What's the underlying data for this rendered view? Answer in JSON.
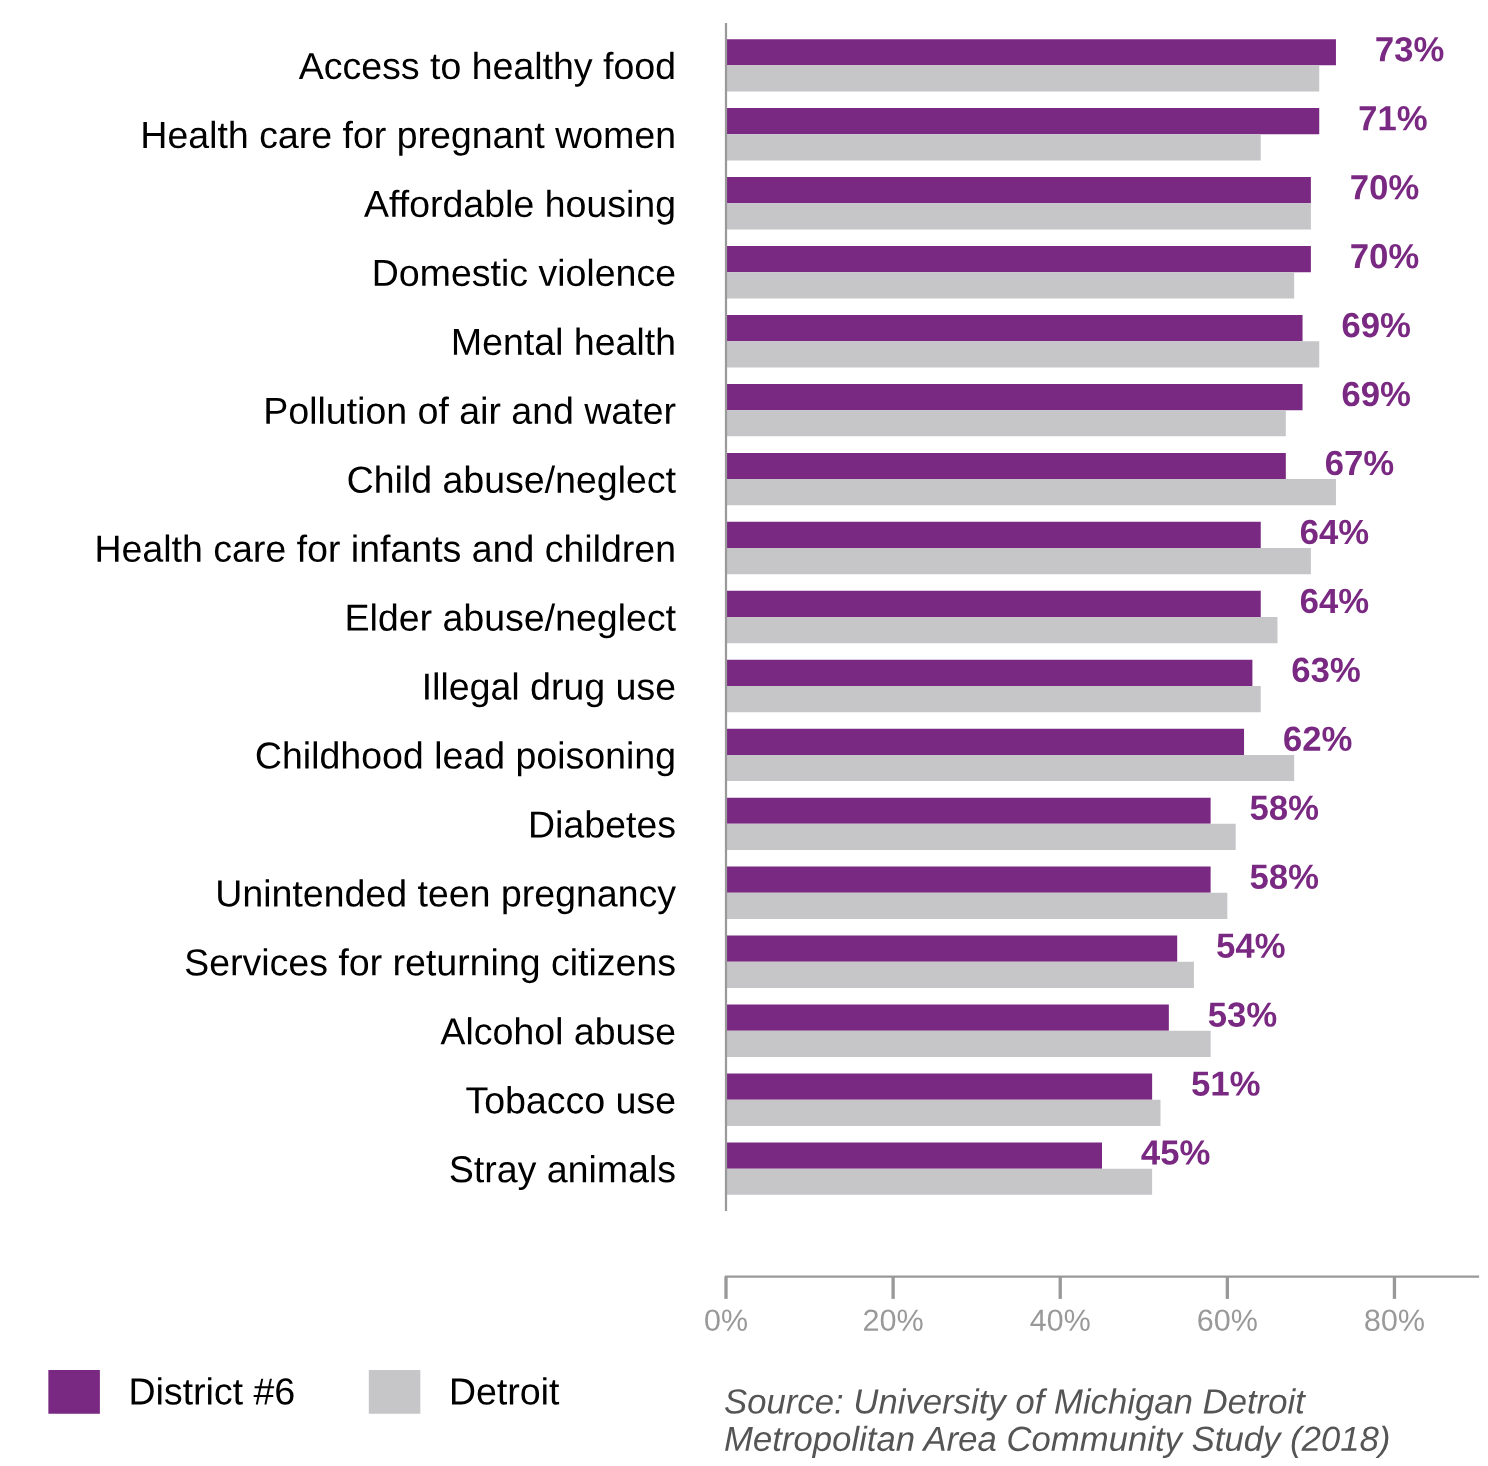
{
  "chart_data": {
    "type": "bar",
    "orientation": "horizontal",
    "categories": [
      "Access to healthy food",
      "Health care for pregnant women",
      "Affordable housing",
      "Domestic violence",
      "Mental health",
      "Pollution of air and water",
      "Child abuse/neglect",
      "Health care for infants and children",
      "Elder abuse/neglect",
      "Illegal drug use",
      "Childhood lead poisoning",
      "Diabetes",
      "Unintended teen pregnancy",
      "Services for returning citizens",
      "Alcohol abuse",
      "Tobacco use",
      "Stray animals"
    ],
    "series": [
      {
        "name": "District #6",
        "color": "#7a2982",
        "values": [
          73,
          71,
          70,
          70,
          69,
          69,
          67,
          64,
          64,
          63,
          62,
          58,
          58,
          54,
          53,
          51,
          45
        ],
        "value_labels": [
          "73%",
          "71%",
          "70%",
          "70%",
          "69%",
          "69%",
          "67%",
          "64%",
          "64%",
          "63%",
          "62%",
          "58%",
          "58%",
          "54%",
          "53%",
          "51%",
          "45%"
        ]
      },
      {
        "name": "Detroit",
        "color": "#c6c6c8",
        "values": [
          71,
          64,
          70,
          68,
          71,
          67,
          73,
          70,
          66,
          64,
          68,
          61,
          60,
          56,
          58,
          52,
          51
        ]
      }
    ],
    "xlim": [
      0,
      90
    ],
    "xticks": [
      {
        "value": 0,
        "label": "0%"
      },
      {
        "value": 20,
        "label": "20%"
      },
      {
        "value": 40,
        "label": "40%"
      },
      {
        "value": 60,
        "label": "60%"
      },
      {
        "value": 80,
        "label": "80%"
      }
    ],
    "grid": false,
    "legend": "bottom left",
    "annotations": [
      "Source: University of Michigan Detroit Metropolitan Area Community Study (2018)"
    ]
  }
}
